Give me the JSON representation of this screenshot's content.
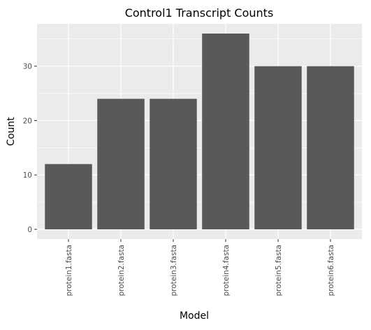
{
  "chart_data": {
    "type": "bar",
    "title": "Control1 Transcript Counts",
    "xlabel": "Model",
    "ylabel": "Count",
    "categories": [
      "protein1.fasta",
      "protein2.fasta",
      "protein3.fasta",
      "protein4.fasta",
      "protein5.fasta",
      "protein6.fasta"
    ],
    "values": [
      12,
      24,
      24,
      36,
      30,
      30
    ],
    "yticks": [
      0,
      10,
      20,
      30
    ],
    "ylim": [
      -1.8,
      37.8
    ],
    "grid": true,
    "colors": {
      "bar": "#595959",
      "panel": "#ebebeb",
      "grid_major": "#ffffff",
      "tick_text": "#4d4d4d",
      "title_text": "#000000"
    }
  }
}
